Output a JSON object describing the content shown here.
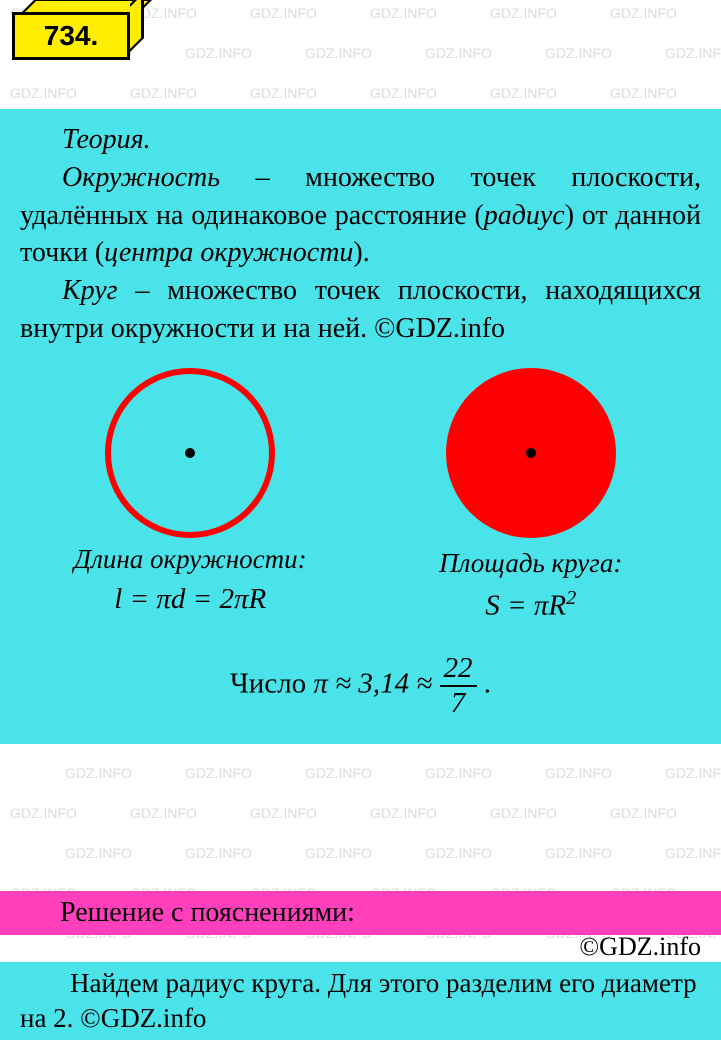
{
  "badge": {
    "number": "734."
  },
  "watermark_text": "GDZ.INFO",
  "watermark_color": "#b8b8b8",
  "theory": {
    "title": "Теория.",
    "circle_def_1": "Окружность",
    "circle_def_2": " – множество точек плоскости, удалённых на одинаковое расстояние (",
    "radius": "радиус",
    "circle_def_3": ") от данной точки (",
    "center": "центра окружности",
    "circle_def_4": ").",
    "disk_def_1": "Круг",
    "disk_def_2": " – множество точек плоскости, находящихся внутри окружности и на ней. ©GDZ.info"
  },
  "diagrams": {
    "left_label": "Длина окружности:",
    "left_formula": "l = πd = 2πR",
    "right_label": "Площадь круга:",
    "right_formula_base": "S = πR",
    "right_formula_exp": "2",
    "outline_color": "#ff0000",
    "fill_color": "#ff0000",
    "dot_color": "#000000"
  },
  "pi": {
    "prefix": "Число  ",
    "approx": "π ≈ 3,14 ≈",
    "num": "22",
    "den": "7",
    "suffix": "."
  },
  "solution": {
    "header": "Решение с пояснениями:",
    "copyright": "©GDZ.info",
    "body": "Найдем радиус круга. Для этого разделим его диаметр на 2. ©GDZ.info"
  },
  "colors": {
    "theory_bg": "#4ae3ea",
    "solution_header_bg": "#ff3fbc",
    "badge_bg": "#ffee00"
  }
}
